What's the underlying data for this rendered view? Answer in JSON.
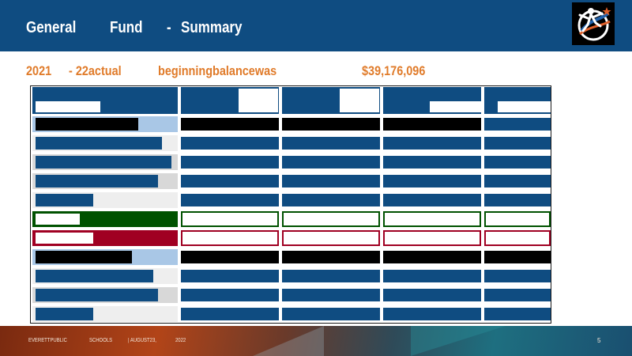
{
  "header": {
    "title_words": [
      "General",
      "Fund",
      "-",
      "Summary"
    ],
    "background": "#0f4c81"
  },
  "logo": {
    "name": "school-district-logo",
    "colors": [
      "#000000",
      "#ffffff",
      "#1f5fa8",
      "#e0602a"
    ]
  },
  "subtitle": {
    "words": [
      "2021",
      "- 22actual",
      "beginningbalancewas",
      "$39,176,096"
    ],
    "color": "#e07b2a"
  },
  "table": {
    "border_color": "#1a1a1a",
    "colors": {
      "blue": "#0f4c81",
      "black": "#000000",
      "green": "#005200",
      "red": "#a00022",
      "light_blue": "#a9c7e6",
      "light_gray": "#eeeeee",
      "mid_gray": "#d8d8d8"
    }
  },
  "footer": {
    "parts": [
      "EVERETTPUBLIC",
      "SCHOOLS",
      "| AUGUST23,",
      "2022"
    ],
    "page_number": "5"
  }
}
